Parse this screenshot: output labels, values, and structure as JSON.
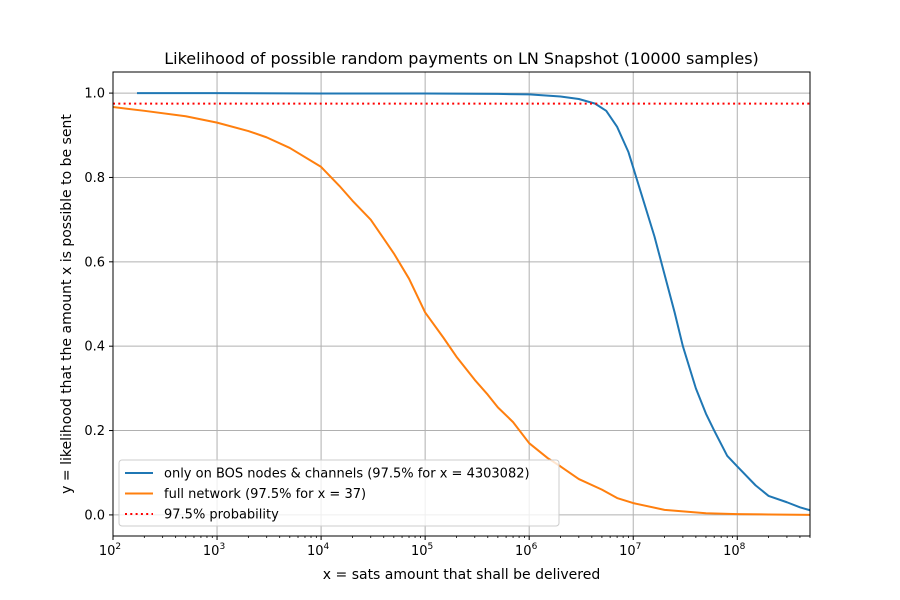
{
  "chart_data": {
    "type": "line",
    "title": "Likelihood of possible random payments on LN Snapshot (10000 samples)",
    "xlabel": "x = sats amount that shall be delivered",
    "ylabel": "y = likelihood that the amount x is possible to be sent",
    "x_scale": "log",
    "xlim": [
      100,
      500000000
    ],
    "ylim": [
      -0.05,
      1.05
    ],
    "grid": true,
    "legend_position": "lower-left",
    "x_ticks": [
      {
        "value": 100,
        "base": "10",
        "exp": "2"
      },
      {
        "value": 1000,
        "base": "10",
        "exp": "3"
      },
      {
        "value": 10000,
        "base": "10",
        "exp": "4"
      },
      {
        "value": 100000,
        "base": "10",
        "exp": "5"
      },
      {
        "value": 1000000,
        "base": "10",
        "exp": "6"
      },
      {
        "value": 10000000,
        "base": "10",
        "exp": "7"
      },
      {
        "value": 100000000,
        "base": "10",
        "exp": "8"
      }
    ],
    "y_ticks": [
      {
        "value": 0.0,
        "label": "0.0"
      },
      {
        "value": 0.2,
        "label": "0.2"
      },
      {
        "value": 0.4,
        "label": "0.4"
      },
      {
        "value": 0.6,
        "label": "0.6"
      },
      {
        "value": 0.8,
        "label": "0.8"
      },
      {
        "value": 1.0,
        "label": "1.0"
      }
    ],
    "series": [
      {
        "name": "only on BOS nodes & channels (97.5% for x = 4303082)",
        "color": "#1f77b4",
        "style": "solid",
        "points": [
          [
            170,
            1.0
          ],
          [
            1000,
            1.0
          ],
          [
            10000,
            0.999
          ],
          [
            100000,
            0.999
          ],
          [
            500000,
            0.998
          ],
          [
            1000000,
            0.997
          ],
          [
            2000000,
            0.992
          ],
          [
            3000000,
            0.986
          ],
          [
            4300000,
            0.975
          ],
          [
            5500000,
            0.958
          ],
          [
            7000000,
            0.92
          ],
          [
            9000000,
            0.86
          ],
          [
            12000000,
            0.76
          ],
          [
            16000000,
            0.66
          ],
          [
            20000000,
            0.57
          ],
          [
            25000000,
            0.48
          ],
          [
            30000000,
            0.4
          ],
          [
            40000000,
            0.3
          ],
          [
            50000000,
            0.24
          ],
          [
            60000000,
            0.2
          ],
          [
            80000000,
            0.14
          ],
          [
            100000000,
            0.115
          ],
          [
            150000000,
            0.07
          ],
          [
            200000000,
            0.045
          ],
          [
            300000000,
            0.03
          ],
          [
            400000000,
            0.018
          ],
          [
            500000000,
            0.011
          ]
        ]
      },
      {
        "name": "full network (97.5% for x = 37)",
        "color": "#ff7f0e",
        "style": "solid",
        "points": [
          [
            100,
            0.967
          ],
          [
            200,
            0.958
          ],
          [
            500,
            0.945
          ],
          [
            1000,
            0.93
          ],
          [
            2000,
            0.91
          ],
          [
            3000,
            0.895
          ],
          [
            5000,
            0.87
          ],
          [
            10000,
            0.825
          ],
          [
            15000,
            0.78
          ],
          [
            20000,
            0.745
          ],
          [
            30000,
            0.7
          ],
          [
            50000,
            0.62
          ],
          [
            70000,
            0.56
          ],
          [
            100000,
            0.48
          ],
          [
            150000,
            0.42
          ],
          [
            200000,
            0.375
          ],
          [
            300000,
            0.32
          ],
          [
            400000,
            0.285
          ],
          [
            500000,
            0.255
          ],
          [
            700000,
            0.22
          ],
          [
            1000000,
            0.17
          ],
          [
            1500000,
            0.135
          ],
          [
            2000000,
            0.115
          ],
          [
            3000000,
            0.085
          ],
          [
            5000000,
            0.06
          ],
          [
            7000000,
            0.04
          ],
          [
            10000000,
            0.028
          ],
          [
            20000000,
            0.012
          ],
          [
            50000000,
            0.004
          ],
          [
            100000000,
            0.002
          ],
          [
            200000000,
            0.001
          ],
          [
            500000000,
            0.0
          ]
        ]
      },
      {
        "name": "97.5% probability",
        "color": "#ff0000",
        "style": "dotted",
        "points": [
          [
            100,
            0.975
          ],
          [
            500000000,
            0.975
          ]
        ]
      }
    ]
  }
}
